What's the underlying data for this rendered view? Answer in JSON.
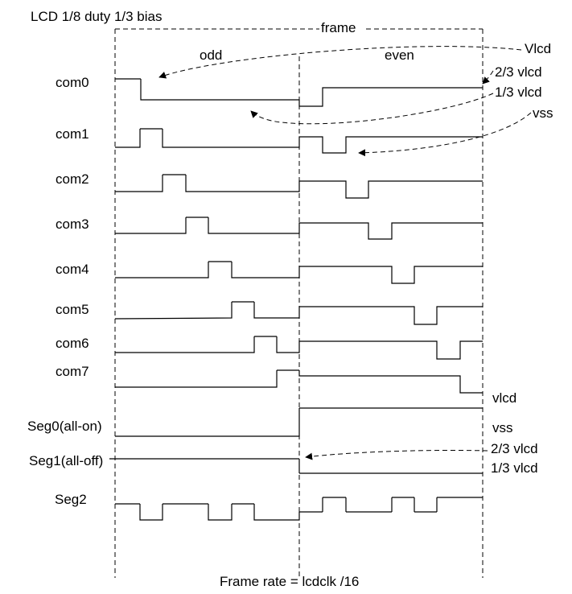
{
  "title": "LCD 1/8 duty 1/3 bias",
  "frame_label": "frame",
  "odd_label": "odd",
  "even_label": "even",
  "footer": "Frame rate = lcdclk /16",
  "level_labels": {
    "vlcd_top": "Vlcd",
    "two_thirds_top": "2/3 vlcd",
    "one_third_top": "1/3 vlcd",
    "vss_top": "vss",
    "vlcd_seg": "vlcd",
    "vss_seg": "vss",
    "two_thirds_seg": "2/3 vlcd",
    "one_third_seg": "1/3 vlcd"
  },
  "signals": [
    {
      "label": "com0"
    },
    {
      "label": "com1"
    },
    {
      "label": "com2"
    },
    {
      "label": "com3"
    },
    {
      "label": "com4"
    },
    {
      "label": "com5"
    },
    {
      "label": "com6"
    },
    {
      "label": "com7"
    },
    {
      "label": "Seg0(all-on)"
    },
    {
      "label": "Seg1(all-off)"
    },
    {
      "label": "Seg2"
    }
  ],
  "colors": {
    "selected_pulse": "#e8343a",
    "seg1_odd": "#4cd640",
    "seg1_even": "#35b8e0",
    "line": "#000000"
  }
}
